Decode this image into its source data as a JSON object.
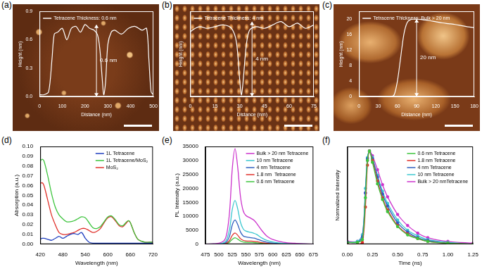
{
  "chart_data": [
    {
      "panel_label": "(a)",
      "type": "line",
      "xlabel": "Distance (nm)",
      "ylabel": "Height (nm)",
      "annotation": "0.6 nm",
      "legend": "upper left",
      "grid": false,
      "xlim": [
        0,
        500
      ],
      "xticks": [
        0,
        100,
        200,
        300,
        400,
        500
      ],
      "ylim": [
        0,
        0.9
      ],
      "yticks": [
        {
          "value": 0,
          "label": "0.0"
        },
        {
          "value": 0.3,
          "label": "0.3"
        },
        {
          "value": 0.6,
          "label": "0.6"
        },
        {
          "value": 0.9,
          "label": "0.9"
        }
      ],
      "x": [
        0,
        20,
        40,
        55,
        65,
        80,
        100,
        120,
        140,
        160,
        180,
        200,
        220,
        240,
        255,
        265,
        275,
        282,
        290,
        300,
        315,
        330,
        360,
        390,
        420,
        450,
        470,
        480,
        490,
        500
      ],
      "series": [
        {
          "name": "Tetracene Thickness: 0.6 nm",
          "color": "#ffffff",
          "values": [
            0.02,
            0.02,
            0.05,
            0.4,
            0.66,
            0.68,
            0.72,
            0.6,
            0.72,
            0.74,
            0.68,
            0.76,
            0.72,
            0.7,
            0.65,
            0.5,
            0.2,
            0.02,
            0.15,
            0.55,
            0.68,
            0.7,
            0.66,
            0.72,
            0.74,
            0.7,
            0.72,
            0.4,
            0.05,
            0.02
          ]
        }
      ]
    },
    {
      "panel_label": "(b)",
      "type": "line",
      "xlabel": "Distance (nm)",
      "ylabel": "Height (nm)",
      "annotation": "4 nm",
      "legend": "upper left",
      "grid": false,
      "tick_labels": "x",
      "xlim": [
        0,
        75
      ],
      "xticks": [
        0,
        15,
        30,
        45,
        60,
        75
      ],
      "ylim": [
        0,
        5
      ],
      "yticks": [],
      "x": [
        0,
        3,
        6,
        10,
        15,
        20,
        25,
        28,
        30,
        31,
        32,
        34,
        36,
        40,
        45,
        50,
        55,
        60,
        65,
        70,
        75
      ],
      "series": [
        {
          "name": "Tetracene Thickness: 4 nm",
          "color": "#ffffff",
          "values": [
            3.8,
            4.0,
            4.1,
            4.0,
            4.1,
            4.2,
            4.0,
            3.2,
            1.0,
            0.1,
            0.8,
            3.0,
            3.9,
            4.1,
            4.0,
            4.2,
            4.4,
            4.1,
            4.3,
            4.0,
            4.2
          ]
        }
      ]
    },
    {
      "panel_label": "(c)",
      "type": "line",
      "xlabel": "Distance (nm)",
      "ylabel": "Height (nm)",
      "annotation": "20 nm",
      "legend": "upper left",
      "grid": false,
      "xlim": [
        0,
        180
      ],
      "xticks": [
        0,
        30,
        60,
        90,
        120,
        150,
        180
      ],
      "ylim": [
        0,
        22
      ],
      "yticks": [
        0,
        4,
        8,
        12,
        16,
        20
      ],
      "x": [
        0,
        30,
        50,
        55,
        60,
        65,
        70,
        75,
        80,
        90,
        100,
        110,
        120,
        130,
        140,
        150,
        160,
        170,
        180
      ],
      "series": [
        {
          "name": "Tetracene Thickness: Bulk > 20 nm",
          "color": "#ffffff",
          "values": [
            0,
            0,
            0,
            0.5,
            4,
            10,
            16,
            19,
            19.8,
            20,
            19.8,
            19.6,
            19.3,
            19.0,
            18.8,
            18.6,
            18.3,
            18.0,
            17.8
          ]
        }
      ]
    },
    {
      "panel_label": "(d)",
      "type": "line",
      "xlabel": "Wavelength (nm)",
      "ylabel": "Absorption (a.u.)",
      "legend": "upper right",
      "grid": false,
      "xlim": [
        420,
        720
      ],
      "xticks": [
        420,
        480,
        540,
        600,
        660,
        720
      ],
      "ylim": [
        0,
        0.1
      ],
      "yticks": [
        {
          "value": 0,
          "label": "0.00"
        },
        {
          "value": 0.01,
          "label": "0.01"
        },
        {
          "value": 0.02,
          "label": "0.02"
        },
        {
          "value": 0.03,
          "label": "0.03"
        },
        {
          "value": 0.04,
          "label": "0.04"
        },
        {
          "value": 0.05,
          "label": "0.05"
        },
        {
          "value": 0.06,
          "label": "0.06"
        },
        {
          "value": 0.07,
          "label": "0.07"
        },
        {
          "value": 0.08,
          "label": "0.08"
        },
        {
          "value": 0.09,
          "label": "0.09"
        },
        {
          "value": 0.1,
          "label": "0.10"
        }
      ],
      "x": [
        420,
        425,
        430,
        440,
        450,
        460,
        470,
        480,
        490,
        500,
        510,
        520,
        530,
        540,
        550,
        560,
        570,
        580,
        590,
        600,
        610,
        620,
        630,
        640,
        650,
        655,
        660,
        670,
        680,
        690,
        700,
        710,
        720
      ],
      "series": [
        {
          "name": "1L Tetracene",
          "color": "#1f3fbf",
          "values": [
            0.005,
            0.006,
            0.006,
            0.005,
            0.004,
            0.006,
            0.008,
            0.006,
            0.008,
            0.01,
            0.011,
            0.01,
            0.012,
            0.006,
            0.002,
            0.001,
            0.001,
            0.001,
            0.001,
            0.001,
            0.001,
            0.001,
            0.001,
            0.001,
            0.001,
            0.001,
            0.001,
            0.001,
            0.001,
            0.001,
            0.001,
            0.001,
            0.001
          ]
        },
        {
          "name": "1L Tetracene/MoS₂",
          "color": "#3dc43d",
          "values": [
            0.085,
            0.087,
            0.085,
            0.07,
            0.052,
            0.038,
            0.03,
            0.026,
            0.023,
            0.023,
            0.024,
            0.026,
            0.028,
            0.027,
            0.022,
            0.017,
            0.016,
            0.018,
            0.023,
            0.028,
            0.029,
            0.025,
            0.02,
            0.019,
            0.023,
            0.024,
            0.022,
            0.012,
            0.005,
            0.003,
            0.002,
            0.002,
            0.002
          ]
        },
        {
          "name": "MoS₂",
          "color": "#e0302a",
          "values": [
            0.062,
            0.063,
            0.06,
            0.045,
            0.03,
            0.02,
            0.012,
            0.01,
            0.01,
            0.011,
            0.012,
            0.014,
            0.016,
            0.016,
            0.014,
            0.012,
            0.013,
            0.016,
            0.022,
            0.027,
            0.028,
            0.024,
            0.019,
            0.018,
            0.022,
            0.024,
            0.022,
            0.012,
            0.005,
            0.003,
            0.002,
            0.002,
            0.002
          ]
        }
      ]
    },
    {
      "panel_label": "(e)",
      "type": "line",
      "xlabel": "Wavelength (nm)",
      "ylabel": "PL Intensity (a.u.)",
      "legend": "upper right",
      "grid": false,
      "xlim": [
        475,
        675
      ],
      "xticks": [
        475,
        500,
        525,
        550,
        575,
        600,
        625,
        650,
        675
      ],
      "ylim": [
        0,
        35000
      ],
      "yticks": [
        0,
        5000,
        10000,
        15000,
        20000,
        25000,
        30000,
        35000
      ],
      "x": [
        475,
        490,
        500,
        510,
        515,
        520,
        525,
        530,
        535,
        540,
        545,
        550,
        560,
        565,
        570,
        580,
        590,
        600,
        620,
        640,
        675
      ],
      "series": [
        {
          "name": "Bulk > 20 nm Tetracene",
          "color": "#cc33cc",
          "values": [
            0,
            170,
            340,
            1370,
            4100,
            12000,
            27400,
            34200,
            27400,
            17100,
            12000,
            10300,
            9200,
            8600,
            7500,
            4800,
            2700,
            1700,
            700,
            340,
            0
          ]
        },
        {
          "name": "10 nm Tetracene",
          "color": "#3cc8d0",
          "values": [
            0,
            80,
            160,
            630,
            1900,
            5500,
            12600,
            15700,
            12600,
            7900,
            5500,
            4700,
            4200,
            3900,
            3500,
            2200,
            1300,
            800,
            300,
            160,
            0
          ]
        },
        {
          "name": "4 nm Tetracene",
          "color": "#2f5fbf",
          "values": [
            0,
            40,
            90,
            350,
            1000,
            3000,
            7000,
            8700,
            7000,
            4400,
            3000,
            2600,
            2300,
            2200,
            1900,
            1200,
            700,
            400,
            200,
            90,
            0
          ]
        },
        {
          "name": "1.8 nm  Tetracene",
          "color": "#e0302a",
          "values": [
            0,
            20,
            40,
            160,
            480,
            1400,
            3200,
            4000,
            3200,
            2000,
            1400,
            1200,
            1100,
            1000,
            900,
            560,
            320,
            200,
            80,
            40,
            0
          ]
        },
        {
          "name": "0.6 nm Tetracene",
          "color": "#3dc43d",
          "values": [
            0,
            10,
            20,
            90,
            280,
            800,
            1800,
            2300,
            1800,
            1150,
            800,
            700,
            600,
            580,
            500,
            320,
            180,
            120,
            50,
            20,
            0
          ]
        }
      ]
    },
    {
      "panel_label": "(f)",
      "type": "line",
      "xlabel": "Time (ns)",
      "ylabel": "Normalized Intensity",
      "legend": "upper right",
      "grid": false,
      "tick_labels": "x",
      "marker": "circle",
      "xlim": [
        0,
        1.25
      ],
      "xticks": [
        {
          "value": 0,
          "label": "0.00"
        },
        {
          "value": 0.25,
          "label": "0.25"
        },
        {
          "value": 0.5,
          "label": "0.50"
        },
        {
          "value": 0.75,
          "label": "0.75"
        },
        {
          "value": 1,
          "label": "1.00"
        },
        {
          "value": 1.25,
          "label": "1.25"
        }
      ],
      "ylim": [
        0,
        1.05
      ],
      "yticks": [],
      "x": [
        0,
        0.1,
        0.15,
        0.18,
        0.2,
        0.22,
        0.25,
        0.3,
        0.35,
        0.4,
        0.5,
        0.6,
        0.7,
        0.8,
        1.0,
        1.25
      ],
      "series": [
        {
          "name": "0.6 nm Tetracene",
          "color": "#3dc43d",
          "values": [
            0.02,
            0.02,
            0.05,
            0.5,
            0.9,
            1.0,
            0.88,
            0.65,
            0.48,
            0.35,
            0.19,
            0.1,
            0.06,
            0.03,
            0.01,
            0
          ]
        },
        {
          "name": "1.8 nm Tetracene",
          "color": "#e0302a",
          "values": [
            0,
            0,
            0.02,
            0.4,
            0.85,
            1.0,
            0.9,
            0.68,
            0.5,
            0.37,
            0.2,
            0.11,
            0.06,
            0.03,
            0.01,
            0
          ]
        },
        {
          "name": "4 nm Tetracene",
          "color": "#2f5fbf",
          "values": [
            0.02,
            0.02,
            0.08,
            0.55,
            0.92,
            1.0,
            0.92,
            0.72,
            0.54,
            0.41,
            0.23,
            0.13,
            0.07,
            0.04,
            0.01,
            0
          ]
        },
        {
          "name": "10 nm Tetracene",
          "color": "#3cc8d0",
          "values": [
            0.02,
            0.03,
            0.1,
            0.6,
            0.93,
            1.0,
            0.93,
            0.74,
            0.57,
            0.44,
            0.26,
            0.15,
            0.09,
            0.05,
            0.02,
            0
          ]
        },
        {
          "name": "Bulk > 20 nmTetracene",
          "color": "#cc33cc",
          "values": [
            0.03,
            0.03,
            0.1,
            0.55,
            0.9,
            1.0,
            0.95,
            0.8,
            0.64,
            0.51,
            0.32,
            0.2,
            0.12,
            0.07,
            0.03,
            0.01
          ]
        }
      ]
    }
  ]
}
